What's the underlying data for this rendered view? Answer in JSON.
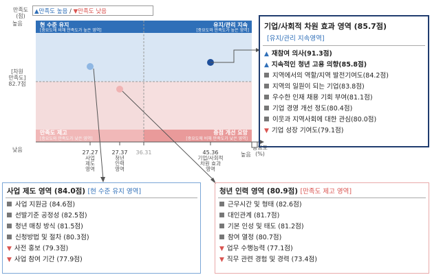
{
  "legend": {
    "y_top": "만족도\n(점)",
    "y_sat": "높음",
    "up_label": "▲만족도 높음",
    "divider": "/",
    "down_label": "▼만족도 낮음",
    "y_mid": "[차원\n만족도]\n82.7점",
    "y_low": "낮음",
    "x_high": "높음",
    "x_axis": "중요도\n(%)"
  },
  "quadrants": {
    "tl_title": "현 수준 유지",
    "tl_sub": "[중요도에 비해 만족도가 높은 영역]",
    "tr_title": "유지/관리 지속",
    "tr_sub": "[중요도와 만족도가 높은 영역]",
    "bl_title": "만족도 제고",
    "bl_sub": "[중요도와 만족도가 낮은 영역]",
    "br_title": "중점 개선 요망",
    "br_sub": "[중요도에 비해 만족도가 낮은 영역]"
  },
  "x_ticks": [
    {
      "value": "27.27",
      "label": "사업\n제도\n영역"
    },
    {
      "value": "27.37",
      "label": "청년\n인력\n영역"
    },
    {
      "value": "36.31",
      "label": ""
    },
    {
      "value": "45.36",
      "label": "기업/사회적\n차원 효과\n영역"
    }
  ],
  "corp_box": {
    "title": "기업/사회적 차원 효과 영역 (85.7점)",
    "subtitle": "[유지/관리 지속영역]",
    "items": [
      {
        "mark": "up",
        "text": "재참여 의사(91.3점)"
      },
      {
        "mark": "up",
        "text": "지속적인 청년 고용 의향(85.8점)"
      },
      {
        "mark": "sq",
        "text": "지역에서의 역할/지역 발전기여도(84.2점)"
      },
      {
        "mark": "sq",
        "text": "지역의 일원이 되는 기업(83.8점)"
      },
      {
        "mark": "sq",
        "text": "우수한 인재 채용 기회 부여(81.1점)"
      },
      {
        "mark": "sq",
        "text": "기업 경영 개선 정도(80.4점)"
      },
      {
        "mark": "sq",
        "text": "이웃과 지역사회에 대한 관심(80.0점)"
      },
      {
        "mark": "down",
        "text": "기업 성장 기여도(79.1점)"
      }
    ]
  },
  "biz_box": {
    "title": "사업 제도 영역 (84.0점)",
    "subtitle": "[현 수준 유지 영역]",
    "items": [
      {
        "mark": "sq",
        "text": "사업 지원금 (84.6점)"
      },
      {
        "mark": "sq",
        "text": "선발기준 공정성 (82.5점)"
      },
      {
        "mark": "sq",
        "text": "청년 매칭 방식 (81.5점)"
      },
      {
        "mark": "sq",
        "text": "신청방법 및 절차 (80.3점)"
      },
      {
        "mark": "down",
        "text": "사전 홍보 (79.3점)"
      },
      {
        "mark": "down",
        "text": "사업 참여 기간 (77.9점)"
      }
    ]
  },
  "youth_box": {
    "title": "청년 인력 영역 (80.9점)",
    "subtitle": "[만족도 제고 영역]",
    "items": [
      {
        "mark": "sq",
        "text": "근무시간 및 형태 (82.6점)"
      },
      {
        "mark": "sq",
        "text": "대인관계 (81.7점)"
      },
      {
        "mark": "sq",
        "text": "기본 인성 및 태도 (81.2점)"
      },
      {
        "mark": "sq",
        "text": "참여 열정 (80.7점)"
      },
      {
        "mark": "down",
        "text": "업무 수행능력 (77.1점)"
      },
      {
        "mark": "down",
        "text": "직무 관련 경험 및 경력 (73.4점)"
      }
    ]
  },
  "colors": {
    "blue": "#2f6fb8",
    "blue_light": "#d9e6f4",
    "red": "#d9534f",
    "pink": "#f4dcdc",
    "pink_box": "#e9a8a8"
  }
}
